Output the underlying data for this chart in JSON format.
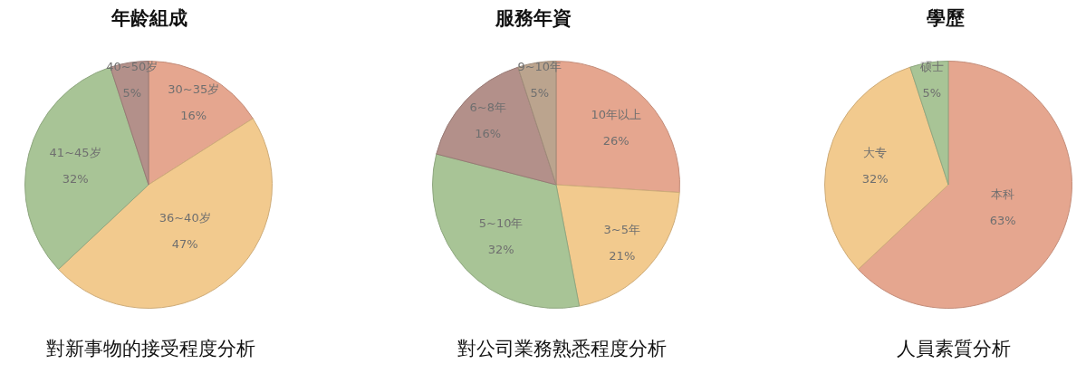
{
  "chart_data": [
    {
      "type": "pie",
      "title": "年龄組成",
      "categories": [
        "30~35岁",
        "36~40岁",
        "41~45岁",
        "40~50岁"
      ],
      "values": [
        16,
        47,
        32,
        5
      ],
      "value_labels": [
        "16%",
        "47%",
        "32%",
        "5%"
      ],
      "colors": [
        "#e5a68f",
        "#f2ca8e",
        "#a8c496",
        "#b3908a"
      ],
      "annotations": [
        "對新事物的接受程度分析"
      ]
    },
    {
      "type": "pie",
      "title": "服務年資",
      "categories": [
        "10年以上",
        "3~5年",
        "5~10年",
        "6~8年",
        "9~10年"
      ],
      "values": [
        26,
        21,
        32,
        16,
        5
      ],
      "value_labels": [
        "26%",
        "21%",
        "32%",
        "16%",
        "5%"
      ],
      "colors": [
        "#e5a68f",
        "#f2ca8e",
        "#a8c496",
        "#b3908a",
        "#bba48e"
      ],
      "annotations": [
        "對公司業務熟悉程度分析"
      ]
    },
    {
      "type": "pie",
      "title": "學歷",
      "categories": [
        "本科",
        "大专",
        "硕士"
      ],
      "values": [
        63,
        32,
        5
      ],
      "value_labels": [
        "63%",
        "32%",
        "5%"
      ],
      "colors": [
        "#e5a68f",
        "#f2ca8e",
        "#a8c496"
      ],
      "annotations": [
        "人員素質分析"
      ]
    }
  ]
}
